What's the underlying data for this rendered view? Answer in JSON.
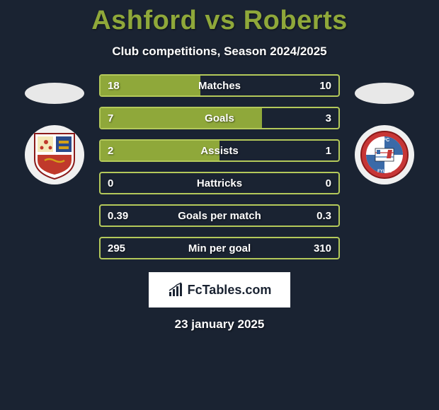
{
  "title": "Ashford vs Roberts",
  "subtitle": "Club competitions, Season 2024/2025",
  "date": "23 january 2025",
  "brand": "FcTables.com",
  "colors": {
    "bg": "#1a2332",
    "accent": "#8fa83a",
    "border": "#b4c95a",
    "white": "#ffffff"
  },
  "player_left": "Ashford",
  "player_right": "Roberts",
  "club_left": {
    "name": "Wealdstone",
    "primary": "#2a4a8a",
    "secondary": "#d4a017",
    "tertiary": "#c0392b"
  },
  "club_right": {
    "name": "AFC Fylde",
    "primary": "#c73636",
    "secondary": "#3a6aa8",
    "tertiary": "#ffffff"
  },
  "stats": [
    {
      "label": "Matches",
      "left_val": "18",
      "right_val": "10",
      "left_pct": 42,
      "right_pct": 0
    },
    {
      "label": "Goals",
      "left_val": "7",
      "right_val": "3",
      "left_pct": 68,
      "right_pct": 0
    },
    {
      "label": "Assists",
      "left_val": "2",
      "right_val": "1",
      "left_pct": 50,
      "right_pct": 0
    },
    {
      "label": "Hattricks",
      "left_val": "0",
      "right_val": "0",
      "left_pct": 0,
      "right_pct": 0
    },
    {
      "label": "Goals per match",
      "left_val": "0.39",
      "right_val": "0.3",
      "left_pct": 0,
      "right_pct": 0
    },
    {
      "label": "Min per goal",
      "left_val": "295",
      "right_val": "310",
      "left_pct": 0,
      "right_pct": 0
    }
  ]
}
